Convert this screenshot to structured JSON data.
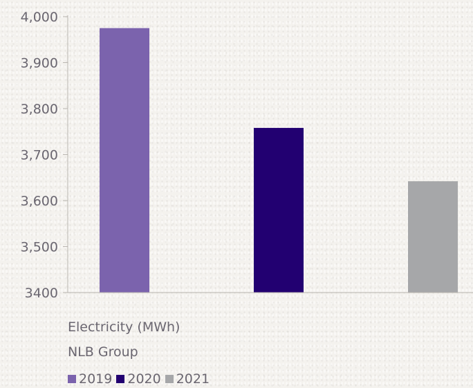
{
  "chart_data": {
    "type": "bar",
    "title": "",
    "xlabel": "",
    "ylabel": "",
    "categories": [
      "2019",
      "2020",
      "2021"
    ],
    "values": [
      3975,
      3758,
      3642
    ],
    "colors": [
      "#7b63ad",
      "#220071",
      "#a6a7a9"
    ],
    "ylim": [
      3400,
      4000
    ],
    "yticks": [
      {
        "value": 3400,
        "label": "3400"
      },
      {
        "value": 3500,
        "label": "3,500"
      },
      {
        "value": 3600,
        "label": "3,600"
      },
      {
        "value": 3700,
        "label": "3,700"
      },
      {
        "value": 3800,
        "label": "3,800"
      },
      {
        "value": 3900,
        "label": "3,900"
      },
      {
        "value": 4000,
        "label": "4,000"
      }
    ],
    "grid": false,
    "legend_position": "bottom-left"
  },
  "captions": {
    "metric": "Electricity (MWh)",
    "entity": "NLB Group"
  },
  "legend": [
    {
      "label": "2019",
      "color": "#7b63ad"
    },
    {
      "label": "2020",
      "color": "#220071"
    },
    {
      "label": "2021",
      "color": "#a6a7a9"
    }
  ]
}
